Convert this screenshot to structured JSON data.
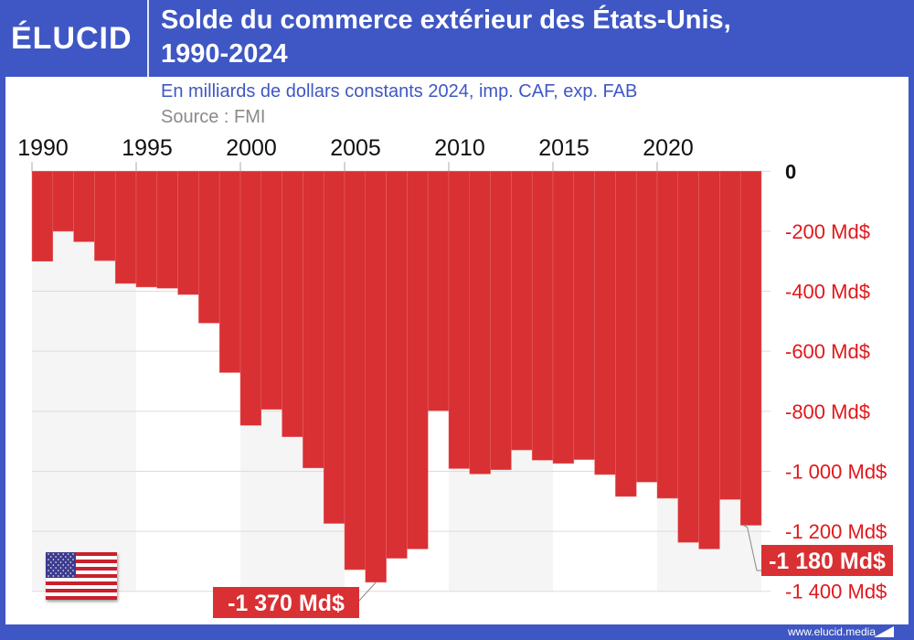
{
  "header": {
    "logo": "ÉLUCID",
    "title_line1": "Solde du commerce extérieur des États-Unis,",
    "title_line2": "1990-2024",
    "subtitle": "En milliards de dollars constants 2024, imp. CAF, exp. FAB",
    "source": "Source : FMI"
  },
  "footer": {
    "url": "www.elucid.media"
  },
  "colors": {
    "brand": "#3f57c4",
    "bar": "#d93033",
    "axis_label": "#e0181c",
    "band": "#f5f5f5"
  },
  "flag_icon": "us-flag",
  "chart_data": {
    "type": "bar",
    "title": "Solde du commerce extérieur des États-Unis, 1990-2024",
    "x": [
      1990,
      1991,
      1992,
      1993,
      1994,
      1995,
      1996,
      1997,
      1998,
      1999,
      2000,
      2001,
      2002,
      2003,
      2004,
      2005,
      2006,
      2007,
      2008,
      2009,
      2010,
      2011,
      2012,
      2013,
      2014,
      2015,
      2016,
      2017,
      2018,
      2019,
      2020,
      2021,
      2022,
      2023,
      2024
    ],
    "values": [
      -300,
      -200,
      -235,
      -298,
      -374,
      -386,
      -390,
      -411,
      -506,
      -671,
      -847,
      -794,
      -885,
      -989,
      -1174,
      -1328,
      -1370,
      -1290,
      -1259,
      -798,
      -991,
      -1009,
      -995,
      -929,
      -963,
      -974,
      -961,
      -1011,
      -1084,
      -1036,
      -1090,
      -1237,
      -1259,
      -1094,
      -1180
    ],
    "x_ticks": [
      "1990",
      "1995",
      "2000",
      "2005",
      "2010",
      "2015",
      "2020"
    ],
    "y_ticks": [
      {
        "value": 0,
        "label": "0"
      },
      {
        "value": -200,
        "label": "-200 Md$"
      },
      {
        "value": -400,
        "label": "-400 Md$"
      },
      {
        "value": -600,
        "label": "-600 Md$"
      },
      {
        "value": -800,
        "label": "-800 Md$"
      },
      {
        "value": -1000,
        "label": "-1 000 Md$"
      },
      {
        "value": -1200,
        "label": "-1 200 Md$"
      },
      {
        "value": -1400,
        "label": "-1 400 Md$"
      }
    ],
    "ylim": [
      -1400,
      0
    ],
    "y_axis_position": "right",
    "x_axis_position": "top",
    "grid": true,
    "annotations": [
      {
        "year": 2006,
        "label": "-1 370 Md$"
      },
      {
        "year": 2024,
        "label": "-1 180 Md$"
      }
    ]
  }
}
